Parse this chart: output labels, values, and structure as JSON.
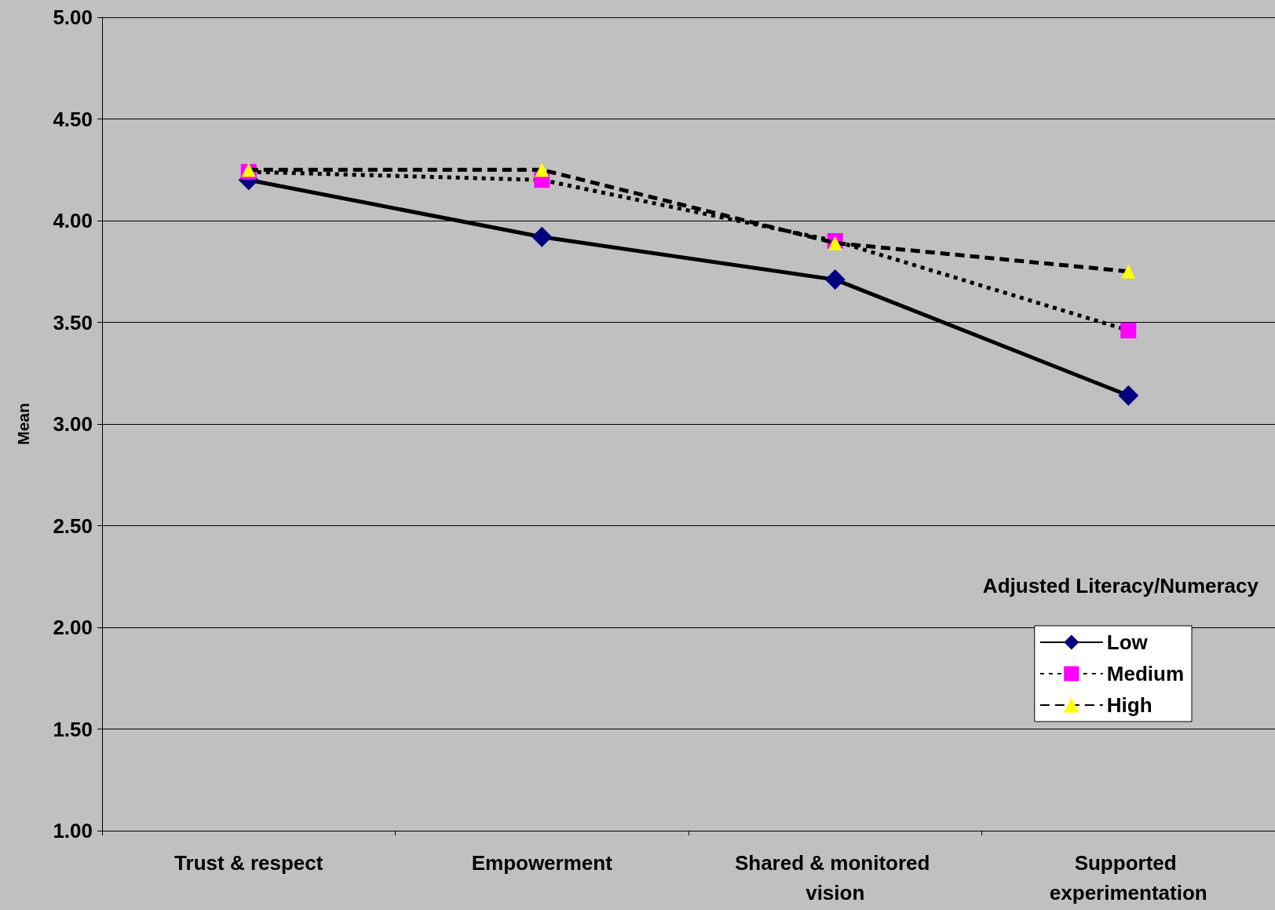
{
  "chart_data": {
    "type": "line",
    "ylabel": "Mean",
    "legend_title": "Adjusted Literacy/Numeracy",
    "categories": [
      "Trust & respect",
      "Empowerment",
      "Shared & monitored vision",
      "Supported experimentation"
    ],
    "series": [
      {
        "name": "Low",
        "color": "#000080",
        "marker": "diamond",
        "line_style": "solid",
        "values": [
          4.2,
          3.92,
          3.71,
          3.14
        ]
      },
      {
        "name": "Medium",
        "color": "#ff00ff",
        "marker": "square",
        "line_style": "dotted",
        "values": [
          4.24,
          4.2,
          3.9,
          3.46
        ]
      },
      {
        "name": "High",
        "color": "#ffff00",
        "marker": "triangle",
        "line_style": "dashed",
        "values": [
          4.25,
          4.25,
          3.89,
          3.75
        ]
      }
    ],
    "ylim": [
      1,
      5
    ],
    "yticks": [
      {
        "value": 1,
        "label": "1.00"
      },
      {
        "value": 1.5,
        "label": "1.50"
      },
      {
        "value": 2,
        "label": "2.00"
      },
      {
        "value": 2.5,
        "label": "2.50"
      },
      {
        "value": 3,
        "label": "3.00"
      },
      {
        "value": 3.5,
        "label": "3.50"
      },
      {
        "value": 4,
        "label": "4.00"
      },
      {
        "value": 4.5,
        "label": "4.50"
      },
      {
        "value": 5,
        "label": "5.00"
      }
    ],
    "grid": "y",
    "legend": "bottom right"
  }
}
